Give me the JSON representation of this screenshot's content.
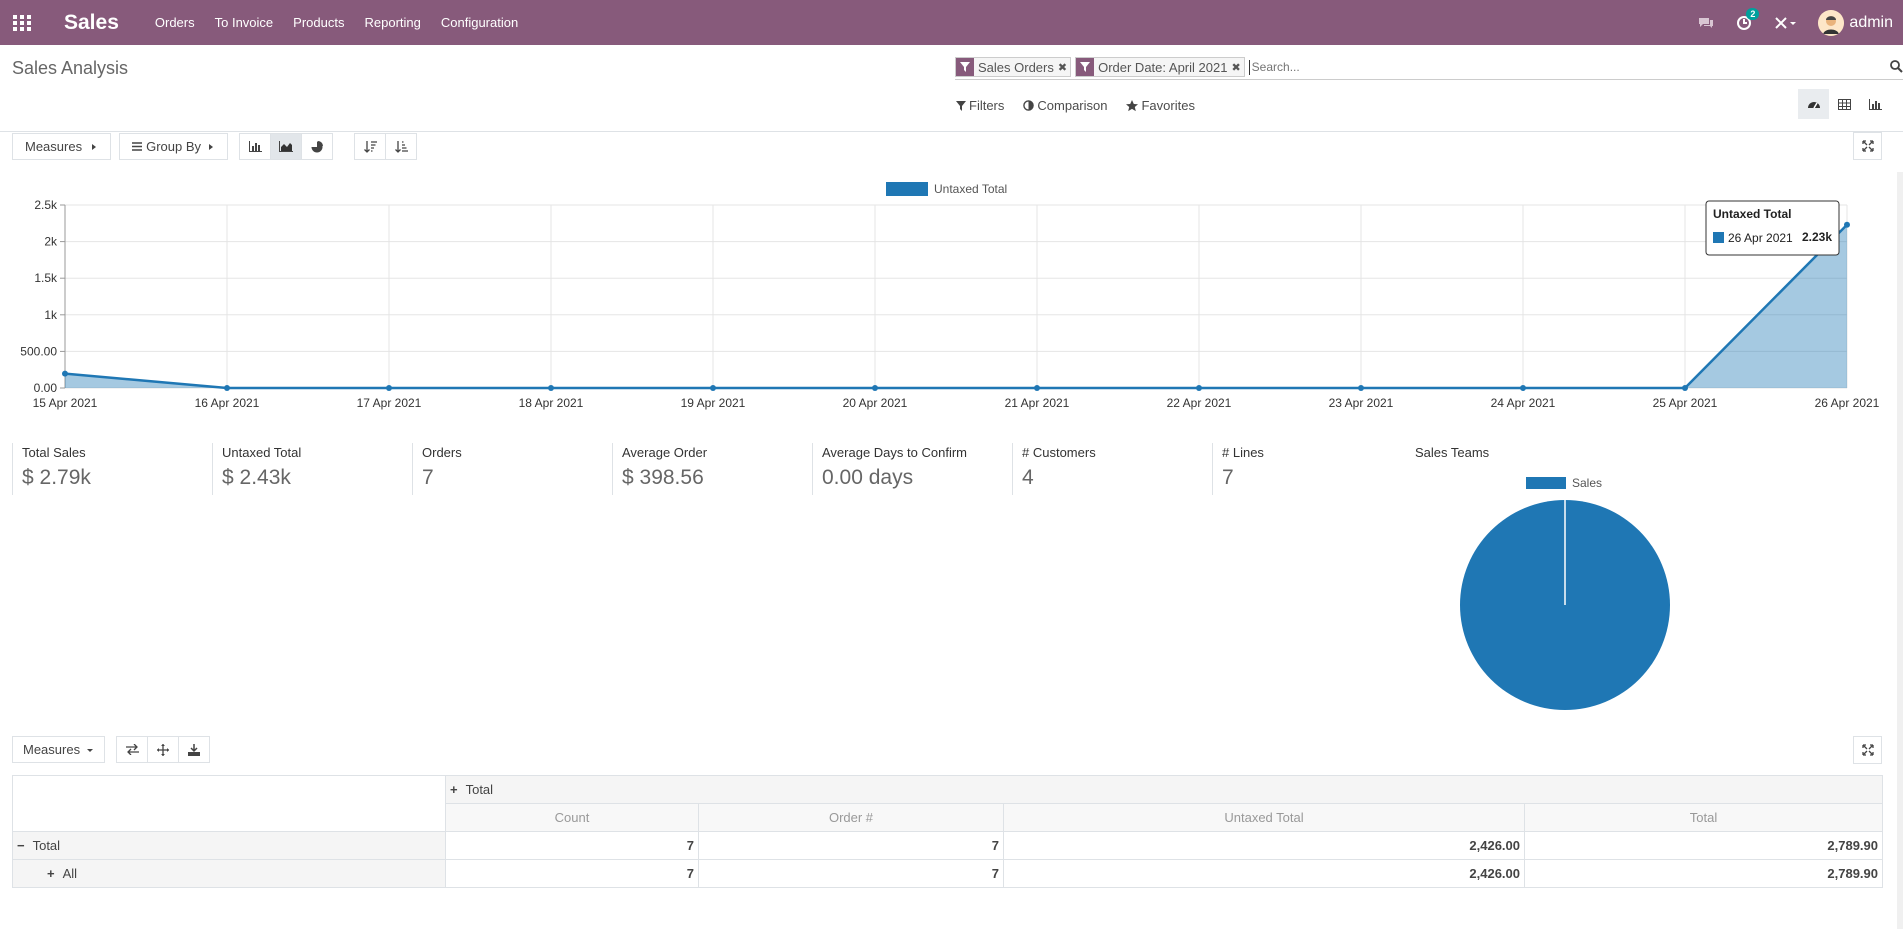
{
  "app": {
    "brand": "Sales",
    "menu": [
      "Orders",
      "To Invoice",
      "Products",
      "Reporting",
      "Configuration"
    ],
    "notification_count": "2",
    "user": "admin"
  },
  "control_panel": {
    "title": "Sales Analysis",
    "facets": [
      "Sales Orders",
      "Order Date: April 2021"
    ],
    "search_placeholder": "Search...",
    "filters_label": "Filters",
    "comparison_label": "Comparison",
    "favorites_label": "Favorites"
  },
  "toolbar": {
    "measures_label": "Measures",
    "groupby_label": "Group By"
  },
  "chart_data": {
    "type": "area",
    "x": [
      "15 Apr 2021",
      "16 Apr 2021",
      "17 Apr 2021",
      "18 Apr 2021",
      "19 Apr 2021",
      "20 Apr 2021",
      "21 Apr 2021",
      "22 Apr 2021",
      "23 Apr 2021",
      "24 Apr 2021",
      "25 Apr 2021",
      "26 Apr 2021"
    ],
    "series": [
      {
        "name": "Untaxed Total",
        "values": [
          196,
          0,
          0,
          0,
          0,
          0,
          0,
          0,
          0,
          0,
          0,
          2230
        ]
      }
    ],
    "yticks": [
      "0.00",
      "500.00",
      "1k",
      "1.5k",
      "2k",
      "2.5k"
    ],
    "ylim": [
      0,
      2500
    ],
    "legend": "top-center",
    "color": "#1f77b4",
    "tooltip": {
      "title": "Untaxed Total",
      "label": "26 Apr 2021",
      "value": "2.23k"
    }
  },
  "kpis": [
    {
      "label": "Total Sales",
      "value": "$ 2.79k"
    },
    {
      "label": "Untaxed Total",
      "value": "$ 2.43k"
    },
    {
      "label": "Orders",
      "value": "7"
    },
    {
      "label": "Average Order",
      "value": "$ 398.56"
    },
    {
      "label": "Average Days to Confirm",
      "value": "0.00 days"
    },
    {
      "label": "# Customers",
      "value": "4"
    },
    {
      "label": "# Lines",
      "value": "7"
    }
  ],
  "sales_teams": {
    "title": "Sales Teams",
    "legend": "Sales",
    "slices": [
      {
        "name": "Sales",
        "value": 100
      }
    ]
  },
  "pivot": {
    "measures_label": "Measures",
    "col_header": "Total",
    "columns": [
      "Count",
      "Order #",
      "Untaxed Total",
      "Total"
    ],
    "rows": [
      {
        "label": "Total",
        "values": [
          "7",
          "7",
          "2,426.00",
          "2,789.90"
        ]
      },
      {
        "label": "All",
        "values": [
          "7",
          "7",
          "2,426.00",
          "2,789.90"
        ]
      }
    ]
  }
}
